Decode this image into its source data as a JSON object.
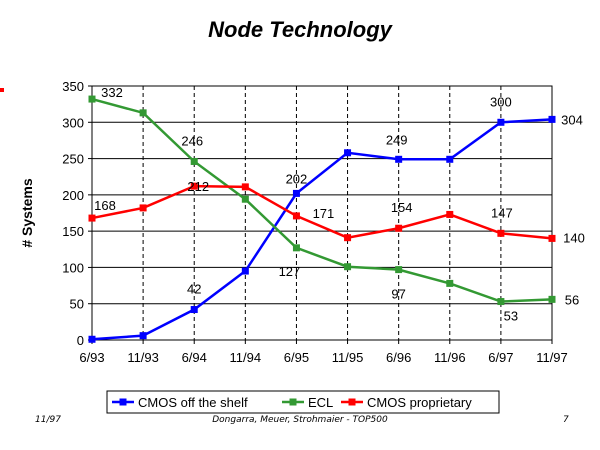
{
  "slide": {
    "footer_left": "11/97",
    "footer_center": "Dongarra, Meuer, Strohmaier - TOP500",
    "footer_right": "7"
  },
  "chart_data": {
    "type": "line",
    "title": "Node Technology",
    "ylabel": "# Systems",
    "xlabel": "",
    "categories": [
      "6/93",
      "11/93",
      "6/94",
      "11/94",
      "6/95",
      "11/95",
      "6/96",
      "11/96",
      "6/97",
      "11/97"
    ],
    "yticks": [
      0,
      50,
      100,
      150,
      200,
      250,
      300,
      350
    ],
    "ylim": [
      0,
      350
    ],
    "grid": true,
    "legend_position": "bottom",
    "series": [
      {
        "name": "CMOS off the shelf",
        "color": "#0000ff",
        "values": [
          1,
          6,
          42,
          95,
          202,
          258,
          249,
          249,
          300,
          304
        ],
        "labels": [
          null,
          null,
          "42",
          null,
          "202",
          null,
          "249",
          null,
          "300",
          "304"
        ]
      },
      {
        "name": "ECL",
        "color": "#339933",
        "values": [
          332,
          313,
          246,
          194,
          127,
          101,
          97,
          78,
          53,
          56
        ],
        "labels": [
          "332",
          null,
          "246",
          null,
          "127",
          null,
          "97",
          null,
          "53",
          "56"
        ]
      },
      {
        "name": "CMOS proprietary",
        "color": "#ff0000",
        "values": [
          168,
          182,
          212,
          211,
          171,
          141,
          154,
          173,
          147,
          140
        ],
        "labels": [
          "168",
          null,
          "212",
          null,
          "171",
          null,
          "154",
          null,
          "147",
          "140"
        ]
      }
    ]
  }
}
